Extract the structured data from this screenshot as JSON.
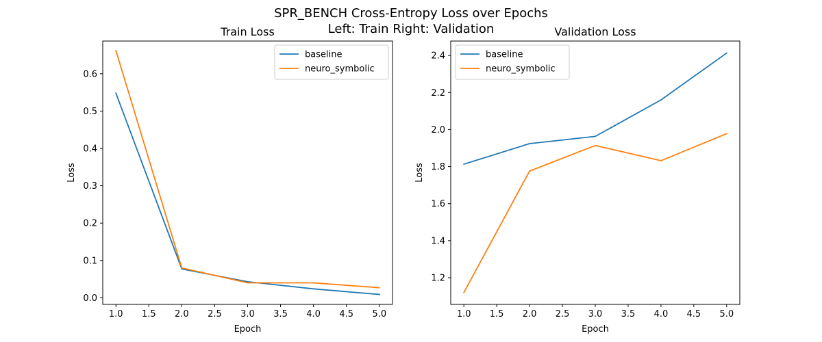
{
  "figure": {
    "title_line1": "SPR_BENCH Cross-Entropy Loss over Epochs",
    "title_line2": "Left: Train   Right: Validation"
  },
  "chart_data": [
    {
      "type": "line",
      "title": "Train Loss",
      "xlabel": "Epoch",
      "ylabel": "Loss",
      "x": [
        1,
        2,
        3,
        4,
        5
      ],
      "xlim": [
        0.8,
        5.2
      ],
      "ylim": [
        -0.0176,
        0.6875
      ],
      "xticks": [
        1.0,
        1.5,
        2.0,
        2.5,
        3.0,
        3.5,
        4.0,
        4.5,
        5.0
      ],
      "yticks": [
        0.0,
        0.1,
        0.2,
        0.3,
        0.4,
        0.5,
        0.6
      ],
      "xtick_labels": [
        "1.0",
        "1.5",
        "2.0",
        "2.5",
        "3.0",
        "3.5",
        "4.0",
        "4.5",
        "5.0"
      ],
      "ytick_labels": [
        "0.0",
        "0.1",
        "0.2",
        "0.3",
        "0.4",
        "0.5",
        "0.6"
      ],
      "grid": false,
      "legend_position": "top-right",
      "series": [
        {
          "name": "baseline",
          "color": "#1f77b4",
          "values": [
            0.548,
            0.077,
            0.043,
            0.024,
            0.009
          ]
        },
        {
          "name": "neuro_symbolic",
          "color": "#ff7f0e",
          "values": [
            0.662,
            0.08,
            0.04,
            0.04,
            0.027
          ]
        }
      ]
    },
    {
      "type": "line",
      "title": "Validation Loss",
      "xlabel": "Epoch",
      "ylabel": "Loss",
      "x": [
        1,
        2,
        3,
        4,
        5
      ],
      "xlim": [
        0.8,
        5.2
      ],
      "ylim": [
        1.056,
        2.478
      ],
      "xticks": [
        1.0,
        1.5,
        2.0,
        2.5,
        3.0,
        3.5,
        4.0,
        4.5,
        5.0
      ],
      "yticks": [
        1.2,
        1.4,
        1.6,
        1.8,
        2.0,
        2.2,
        2.4
      ],
      "xtick_labels": [
        "1.0",
        "1.5",
        "2.0",
        "2.5",
        "3.0",
        "3.5",
        "4.0",
        "4.5",
        "5.0"
      ],
      "ytick_labels": [
        "1.2",
        "1.4",
        "1.6",
        "1.8",
        "2.0",
        "2.2",
        "2.4"
      ],
      "grid": false,
      "legend_position": "top-left",
      "series": [
        {
          "name": "baseline",
          "color": "#1f77b4",
          "values": [
            1.813,
            1.924,
            1.963,
            2.16,
            2.413
          ]
        },
        {
          "name": "neuro_symbolic",
          "color": "#ff7f0e",
          "values": [
            1.12,
            1.776,
            1.914,
            1.832,
            1.978
          ]
        }
      ]
    }
  ]
}
